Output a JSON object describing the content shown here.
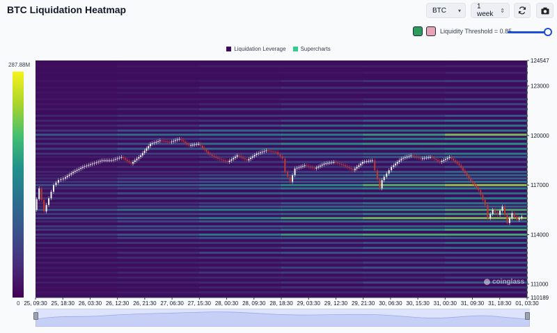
{
  "header": {
    "title": "BTC Liquidation Heatmap",
    "symbol": "BTC",
    "range": "1 week",
    "threshold_label": "Liquidity Threshold = 0.85",
    "threshold_value": 0.85,
    "icons": [
      "refresh-icon",
      "camera-icon"
    ],
    "swatch_colors": [
      "#2a9d5c",
      "#e9a3b4"
    ]
  },
  "watermark": "coinglass",
  "chart_data": {
    "type": "heatmap",
    "title": "",
    "legend": [
      "Liquidation Leverage",
      "Supercharts"
    ],
    "legend_colors": [
      "#3b0a5c",
      "#2ecf8e"
    ],
    "colorbar": {
      "max_label": "287.88M",
      "min_label": "0"
    },
    "y_ticks": [
      124547,
      123000,
      120000,
      117000,
      114000,
      111000,
      110189
    ],
    "ylim": [
      110189,
      124547
    ],
    "x_ticks": [
      "25, 09:30",
      "25, 18:30",
      "26, 03:30",
      "26, 12:30",
      "26, 21:30",
      "27, 06:30",
      "27, 15:30",
      "28, 00:30",
      "28, 09:30",
      "28, 18:30",
      "29, 03:30",
      "29, 12:30",
      "29, 21:30",
      "30, 06:30",
      "30, 15:30",
      "31, 00:30",
      "31, 09:30",
      "31, 18:30",
      "01, 03:30"
    ],
    "price_path": [
      [
        0,
        115500
      ],
      [
        0.5,
        116800
      ],
      [
        1,
        115400
      ],
      [
        1.5,
        116200
      ],
      [
        2,
        117000
      ],
      [
        2.5,
        117300
      ],
      [
        3,
        117400
      ],
      [
        4,
        117800
      ],
      [
        5,
        118100
      ],
      [
        6,
        118300
      ],
      [
        7,
        118500
      ],
      [
        8,
        118500
      ],
      [
        9,
        118700
      ],
      [
        10,
        118300
      ],
      [
        11,
        118800
      ],
      [
        12,
        119500
      ],
      [
        13,
        119700
      ],
      [
        14,
        119600
      ],
      [
        15,
        119800
      ],
      [
        16,
        119400
      ],
      [
        17,
        119500
      ],
      [
        18,
        118900
      ],
      [
        19,
        118600
      ],
      [
        20,
        118400
      ],
      [
        21,
        118800
      ],
      [
        22,
        118500
      ],
      [
        23,
        118900
      ],
      [
        24,
        119100
      ],
      [
        25,
        119000
      ],
      [
        25.7,
        118600
      ],
      [
        26,
        117800
      ],
      [
        26.5,
        117200
      ],
      [
        27,
        118000
      ],
      [
        28,
        118200
      ],
      [
        29,
        118000
      ],
      [
        30,
        118300
      ],
      [
        31,
        118400
      ],
      [
        32,
        118200
      ],
      [
        33,
        117900
      ],
      [
        34,
        118400
      ],
      [
        35,
        118500
      ],
      [
        35.3,
        117900
      ],
      [
        35.8,
        116800
      ],
      [
        36,
        117300
      ],
      [
        36.5,
        117700
      ],
      [
        37,
        118100
      ],
      [
        38,
        118600
      ],
      [
        39,
        118800
      ],
      [
        40,
        118600
      ],
      [
        41,
        118700
      ],
      [
        42,
        118400
      ],
      [
        43,
        118700
      ],
      [
        44,
        118200
      ],
      [
        45,
        117400
      ],
      [
        46,
        116700
      ],
      [
        46.7,
        115800
      ],
      [
        47,
        115000
      ],
      [
        47.5,
        115500
      ],
      [
        48,
        115200
      ],
      [
        48.5,
        115700
      ],
      [
        49,
        114700
      ],
      [
        49.5,
        115300
      ],
      [
        50,
        114900
      ],
      [
        50.5,
        115100
      ]
    ],
    "bands": [
      [
        124200,
        0.15
      ],
      [
        123800,
        0.12
      ],
      [
        123300,
        0.2
      ],
      [
        122900,
        0.22
      ],
      [
        122600,
        0.18
      ],
      [
        122200,
        0.2
      ],
      [
        121900,
        0.25
      ],
      [
        121600,
        0.3
      ],
      [
        121200,
        0.35
      ],
      [
        120900,
        0.4
      ],
      [
        120600,
        0.5
      ],
      [
        120300,
        0.62
      ],
      [
        120050,
        0.9
      ],
      [
        119800,
        0.55
      ],
      [
        119500,
        0.7
      ],
      [
        119200,
        0.65
      ],
      [
        118900,
        0.5
      ],
      [
        118700,
        0.35
      ],
      [
        118400,
        0.3
      ],
      [
        118100,
        0.32
      ],
      [
        117800,
        0.38
      ],
      [
        117600,
        0.42
      ],
      [
        117400,
        0.48
      ],
      [
        117200,
        0.5
      ],
      [
        117000,
        0.85
      ],
      [
        116800,
        0.6
      ],
      [
        116500,
        0.55
      ],
      [
        116200,
        0.5
      ],
      [
        115900,
        0.45
      ],
      [
        115700,
        0.48
      ],
      [
        115500,
        0.88
      ],
      [
        115250,
        0.6
      ],
      [
        115000,
        0.9
      ],
      [
        114800,
        0.5
      ],
      [
        114500,
        0.55
      ],
      [
        114300,
        0.65
      ],
      [
        114000,
        0.8
      ],
      [
        113800,
        0.45
      ],
      [
        113500,
        0.4
      ],
      [
        113200,
        0.35
      ],
      [
        112900,
        0.38
      ],
      [
        112600,
        0.3
      ],
      [
        112300,
        0.28
      ],
      [
        112000,
        0.32
      ],
      [
        111700,
        0.3
      ],
      [
        111400,
        0.25
      ],
      [
        111100,
        0.3
      ],
      [
        110800,
        0.22
      ],
      [
        110500,
        0.2
      ]
    ]
  }
}
